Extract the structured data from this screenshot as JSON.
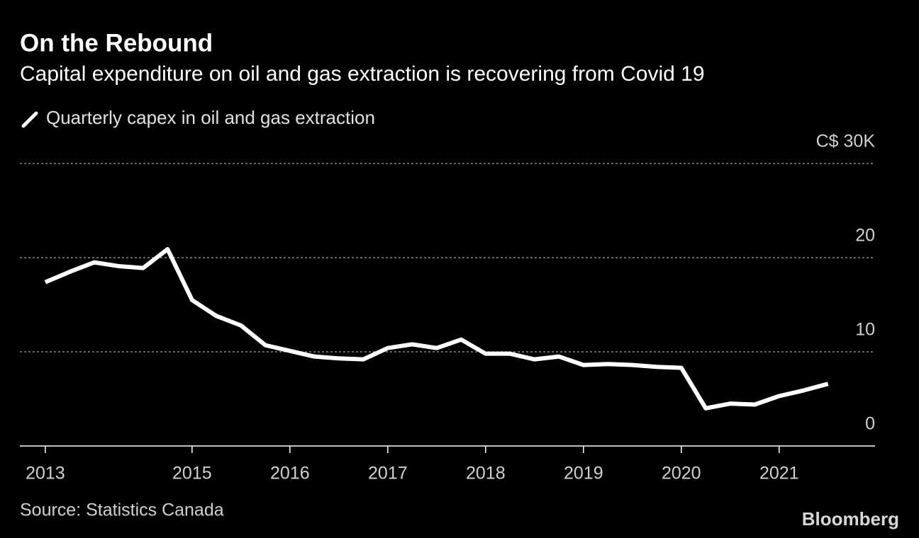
{
  "chart_data": {
    "type": "line",
    "title": "On the Rebound",
    "subtitle": "Capital expenditure on oil and gas extraction is recovering from Covid 19",
    "source": "Source: Statistics Canada",
    "logo": "Bloomberg",
    "x": [
      2013.5,
      2013.75,
      2014,
      2014.25,
      2014.5,
      2014.75,
      2015,
      2015.25,
      2015.5,
      2015.75,
      2016,
      2016.25,
      2016.5,
      2016.75,
      2017,
      2017.25,
      2017.5,
      2017.75,
      2018,
      2018.25,
      2018.5,
      2018.75,
      2019,
      2019.25,
      2019.5,
      2019.75,
      2020,
      2020.25,
      2020.5,
      2020.75,
      2021,
      2021.25,
      2021.5
    ],
    "series": [
      {
        "name": "Quarterly capex in oil and gas extraction",
        "color": "#ffffff",
        "values": [
          17.4,
          18.5,
          19.5,
          19.1,
          18.9,
          20.9,
          15.5,
          13.8,
          12.8,
          10.7,
          10.1,
          9.5,
          9.3,
          9.2,
          10.4,
          10.8,
          10.4,
          11.3,
          9.8,
          9.8,
          9.2,
          9.5,
          8.6,
          8.7,
          8.6,
          8.4,
          8.3,
          4.0,
          4.5,
          4.4,
          5.3,
          5.9,
          6.6
        ]
      }
    ],
    "xlim": [
      2013.24,
      2021.98
    ],
    "xticks": [
      {
        "value": 2013.5,
        "label": "2013"
      },
      2015,
      2016,
      2017,
      2018,
      2019,
      2020,
      2021
    ],
    "ylim": [
      0,
      30
    ],
    "yticks": [
      0,
      10,
      20,
      {
        "value": 30,
        "label": "C$ 30K"
      }
    ],
    "grid": true
  }
}
